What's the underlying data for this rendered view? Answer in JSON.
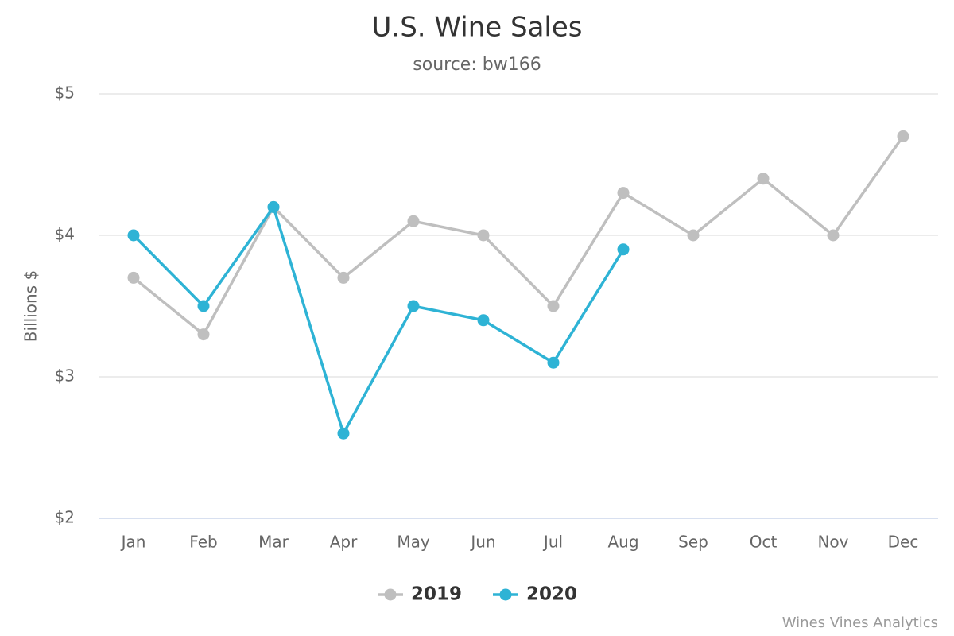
{
  "chart_data": {
    "type": "line",
    "title": "U.S. Wine Sales",
    "subtitle": "source: bw166",
    "y_label": "Billions $",
    "credits": "Wines Vines Analytics",
    "categories": [
      "Jan",
      "Feb",
      "Mar",
      "Apr",
      "May",
      "Jun",
      "Jul",
      "Aug",
      "Sep",
      "Oct",
      "Nov",
      "Dec"
    ],
    "series": [
      {
        "name": "2019",
        "color": "#bfbfbf",
        "values": [
          3.7,
          3.3,
          4.2,
          3.7,
          4.1,
          4.0,
          3.5,
          4.3,
          4.0,
          4.4,
          4.0,
          4.7
        ]
      },
      {
        "name": "2020",
        "color": "#2eb3d5",
        "values": [
          4.0,
          3.5,
          4.2,
          2.6,
          3.5,
          3.4,
          3.1,
          3.9,
          null,
          null,
          null,
          null
        ]
      }
    ],
    "ylim": [
      2,
      5
    ],
    "yticks": [
      {
        "value": 2,
        "label": "$2"
      },
      {
        "value": 3,
        "label": "$3"
      },
      {
        "value": 4,
        "label": "$4"
      },
      {
        "value": 5,
        "label": "$5"
      }
    ],
    "grid": true,
    "legend": "bottom"
  }
}
